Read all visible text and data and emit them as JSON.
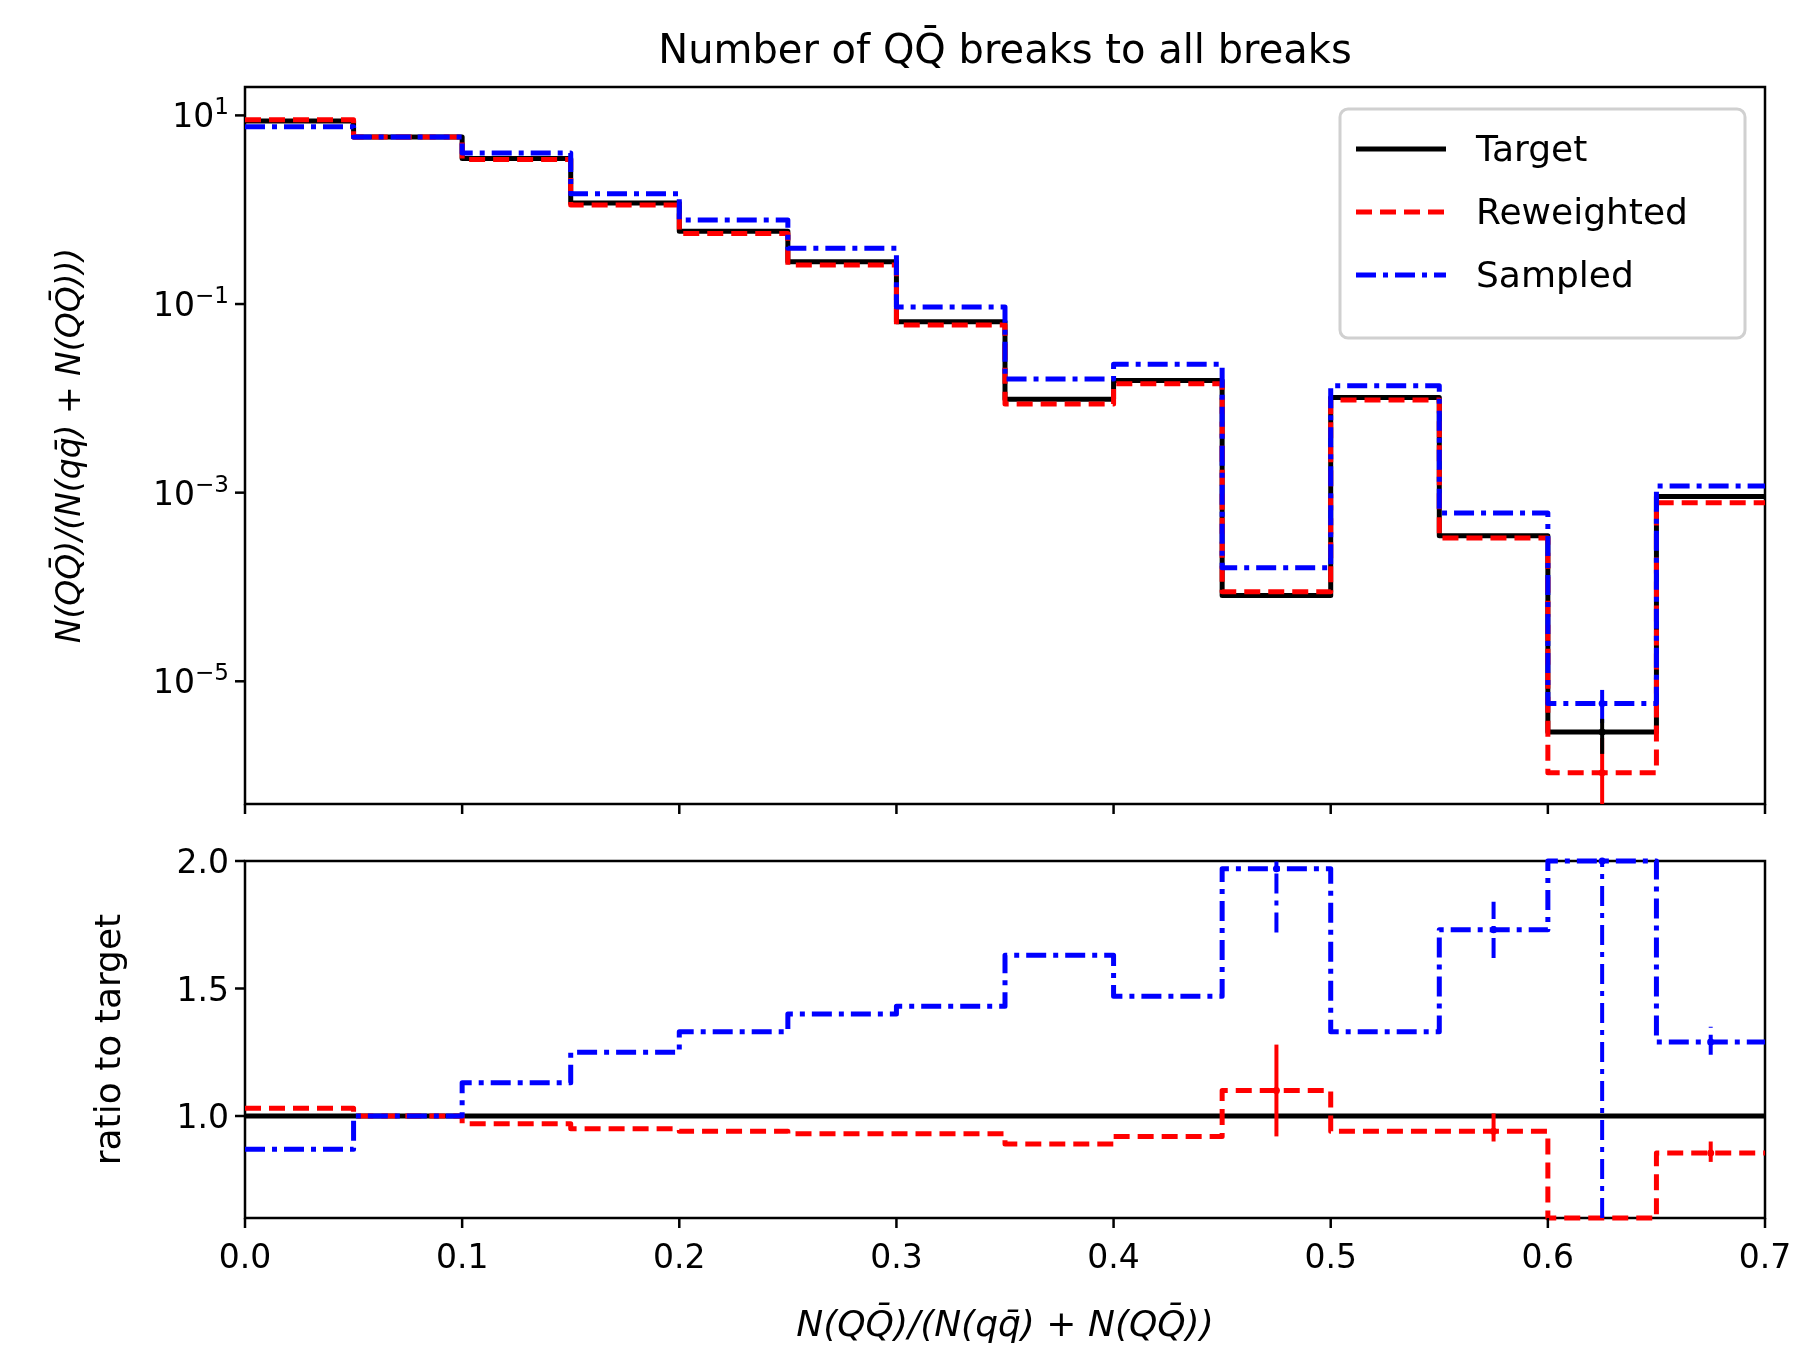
{
  "chart_data": [
    {
      "type": "histogram",
      "title": "Number of QQ̄ breaks to all breaks",
      "ylabel": "N(QQ̄)/(N(qq̄) + N(QQ̄)))",
      "bins": [
        0,
        0.05,
        0.1,
        0.15,
        0.2,
        0.25,
        0.3,
        0.35,
        0.4,
        0.45,
        0.5,
        0.55,
        0.6,
        0.65,
        0.7
      ],
      "log": true,
      "xlim": [
        0,
        0.7
      ],
      "xticks": [
        0,
        0.1,
        0.2,
        0.3,
        0.4,
        0.5,
        0.6,
        0.7
      ],
      "ylim": [
        5e-07,
        20
      ],
      "yticks": [
        {
          "value": 10,
          "label": "10$^{1}$"
        },
        {
          "value": 0.1,
          "label": "10$^{−1}$"
        },
        {
          "value": 0.001,
          "label": "10$^{−3}$"
        },
        {
          "value": 1e-05,
          "label": "10$^{−5}$"
        }
      ],
      "tick_labels": "y",
      "legend": "top right",
      "marker": "circle",
      "grid": false,
      "series": [
        {
          "name": "Target",
          "color": "#000000",
          "line_style": "solid",
          "values": [
            8.7,
            5.9,
            3.5,
            1.18,
            0.59,
            0.28,
            0.065,
            0.0098,
            0.0155,
            8.1e-05,
            0.0102,
            0.00035,
            2.9e-06,
            0.00091
          ]
        },
        {
          "name": "Reweighted",
          "color": "#ff0000",
          "line_style": "dashed",
          "values": [
            9.0,
            5.9,
            3.4,
            1.12,
            0.56,
            0.26,
            0.06,
            0.0087,
            0.0143,
            8.9e-05,
            0.0096,
            0.00033,
            1.07e-06,
            0.00078
          ]
        },
        {
          "name": "Sampled",
          "color": "#0000ff",
          "line_style": "dashdot",
          "values": [
            7.6,
            5.9,
            4.0,
            1.48,
            0.78,
            0.39,
            0.093,
            0.016,
            0.023,
            0.00016,
            0.0136,
            0.00061,
            5.8e-06,
            0.00118
          ]
        },
        {
          "type": "scatter",
          "color": "#ff0000",
          "x": [
            0.625
          ],
          "values": [
            1.07e-06
          ],
          "errors": [
            [
              5e-07,
              2.5e-06
            ]
          ]
        },
        {
          "type": "scatter",
          "color": "#0000ff",
          "x": [
            0.625
          ],
          "values": [
            5.8e-06
          ],
          "errors": [
            [
              3.6e-06,
              8.1e-06
            ]
          ]
        },
        {
          "type": "scatter",
          "color": "#000000",
          "x": [
            0.625
          ],
          "values": [
            2.9e-06
          ],
          "errors": [
            [
              1.7e-06,
              4e-06
            ]
          ]
        }
      ]
    },
    {
      "type": "histogram",
      "xlabel": "N(QQ̄)/(N(qq̄) + N(QQ̄))",
      "ylabel": "ratio to target",
      "bins": [
        0,
        0.05,
        0.1,
        0.15,
        0.2,
        0.25,
        0.3,
        0.35,
        0.4,
        0.45,
        0.5,
        0.55,
        0.6,
        0.65,
        0.7
      ],
      "xlim": [
        0,
        0.7
      ],
      "xticks": [
        {
          "value": 0,
          "label": "0.0"
        },
        0.1,
        0.2,
        0.3,
        0.4,
        0.5,
        0.6,
        0.7
      ],
      "ylim": [
        0.6,
        2.0
      ],
      "yticks": [
        {
          "value": 1,
          "label": "1.0"
        },
        1.5,
        {
          "value": 2,
          "label": "2.0"
        }
      ],
      "marker": "circle",
      "grid": false,
      "series": [
        {
          "color": "#000000",
          "line_style": "solid",
          "values": [
            1,
            1,
            1,
            1,
            1,
            1,
            1,
            1,
            1,
            1,
            1,
            1,
            1,
            1
          ]
        },
        {
          "color": "#ff0000",
          "line_style": "dashed",
          "values": [
            1.03,
            1.0,
            0.97,
            0.95,
            0.94,
            0.93,
            0.93,
            0.89,
            0.92,
            1.1,
            0.94,
            0.94,
            null,
            0.855
          ]
        },
        {
          "color": "#0000ff",
          "line_style": "dashdot",
          "values": [
            0.87,
            1.0,
            1.13,
            1.25,
            1.33,
            1.4,
            1.43,
            1.63,
            1.47,
            1.97,
            1.33,
            1.73,
            2.0,
            1.29
          ]
        },
        {
          "type": "scatter",
          "color": "#ff0000",
          "x": [
            0.475,
            0.575,
            0.675
          ],
          "values": [
            1.1,
            0.94,
            0.855
          ],
          "errors": [
            [
              0.92,
              1.28
            ],
            [
              0.9,
              1.01
            ],
            [
              0.82,
              0.9
            ]
          ]
        },
        {
          "type": "scatter",
          "color": "#0000ff",
          "line_style": "dashdot",
          "x": [
            0.475,
            0.575,
            0.625,
            0.675
          ],
          "values": [
            1.97,
            1.73,
            2.0,
            1.29
          ],
          "errors": [
            [
              1.72,
              2.0
            ],
            [
              1.62,
              1.84
            ],
            [
              0.6,
              2.0
            ],
            [
              1.24,
              1.35
            ]
          ]
        }
      ]
    }
  ]
}
